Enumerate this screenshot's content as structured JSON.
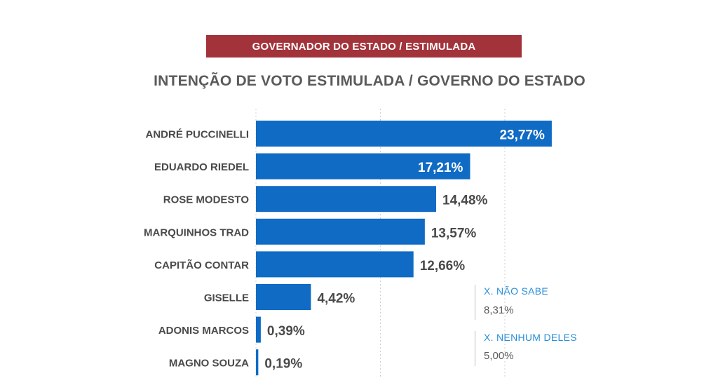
{
  "banner": "GOVERNADOR DO ESTADO / ESTIMULADA",
  "title": "INTENÇÃO DE VOTO ESTIMULADA / GOVERNO DO ESTADO",
  "colors": {
    "bar": "#0f6bc4",
    "banner": "#a3333a",
    "label": "#4a4a4a",
    "side_label": "#2a8fd8"
  },
  "chart_data": {
    "type": "bar",
    "orientation": "horizontal",
    "title": "INTENÇÃO DE VOTO ESTIMULADA / GOVERNO DO ESTADO",
    "categories": [
      "ANDRÉ PUCCINELLI",
      "EDUARDO RIEDEL",
      "ROSE MODESTO",
      "MARQUINHOS TRAD",
      "CAPITÃO CONTAR",
      "GISELLE",
      "ADONIS MARCOS",
      "MAGNO SOUZA"
    ],
    "values": [
      23.77,
      17.21,
      14.48,
      13.57,
      12.66,
      4.42,
      0.39,
      0.19
    ],
    "value_labels": [
      "23,77%",
      "17,21%",
      "14,48%",
      "13,57%",
      "12,66%",
      "4,42%",
      "0,39%",
      "0,19%"
    ],
    "xlim": [
      0,
      30
    ],
    "grid": true
  },
  "side_notes": [
    {
      "label": "X. NÃO SABE",
      "value": "8,31%"
    },
    {
      "label": "X. NENHUM DELES",
      "value": "5,00%"
    }
  ]
}
